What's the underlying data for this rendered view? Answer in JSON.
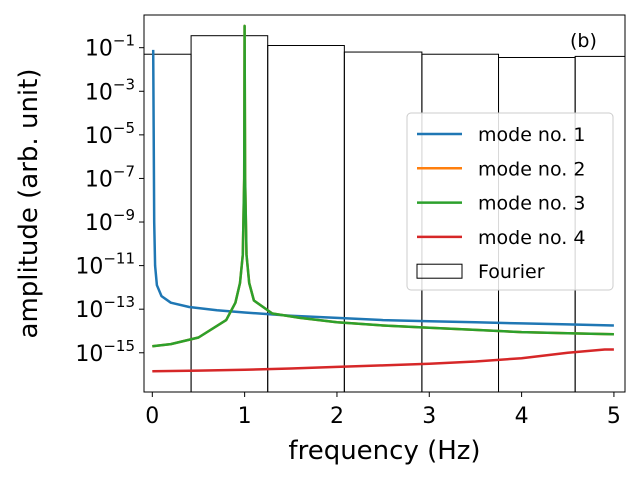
{
  "chart_data": {
    "type": "line",
    "panel_label": "(b)",
    "xlabel": "frequency (Hz)",
    "ylabel": "amplitude (arb. unit)",
    "xlim": [
      -0.09,
      5.12
    ],
    "ylim_log10": [
      -16.8,
      0.5
    ],
    "yscale": "log",
    "x_ticks": [
      0,
      1,
      2,
      3,
      4,
      5
    ],
    "y_ticks_exp": [
      -1,
      -3,
      -5,
      -7,
      -9,
      -11,
      -13,
      -15
    ],
    "legend_position": "center-right",
    "series": [
      {
        "name": "mode no. 1",
        "color": "#1f77b4",
        "points": [
          [
            0.01,
            -1.1
          ],
          [
            0.015,
            -5
          ],
          [
            0.02,
            -9
          ],
          [
            0.03,
            -11
          ],
          [
            0.05,
            -11.9
          ],
          [
            0.1,
            -12.4
          ],
          [
            0.2,
            -12.7
          ],
          [
            0.4,
            -12.9
          ],
          [
            0.7,
            -13.05
          ],
          [
            1,
            -13.15
          ],
          [
            1.5,
            -13.3
          ],
          [
            2,
            -13.4
          ],
          [
            2.5,
            -13.5
          ],
          [
            3,
            -13.55
          ],
          [
            3.5,
            -13.6
          ],
          [
            4,
            -13.65
          ],
          [
            4.5,
            -13.7
          ],
          [
            5,
            -13.75
          ]
        ]
      },
      {
        "name": "mode no. 2",
        "color": "#ff7f0e",
        "points": [
          [
            0,
            -14.7
          ],
          [
            0.2,
            -14.6
          ],
          [
            0.5,
            -14.3
          ],
          [
            0.8,
            -13.5
          ],
          [
            0.9,
            -12.7
          ],
          [
            0.95,
            -11.8
          ],
          [
            0.98,
            -10.5
          ],
          [
            0.995,
            -7
          ],
          [
            1,
            0.0
          ],
          [
            1.005,
            -7
          ],
          [
            1.02,
            -10.5
          ],
          [
            1.05,
            -11.8
          ],
          [
            1.1,
            -12.6
          ],
          [
            1.3,
            -13.2
          ],
          [
            1.6,
            -13.4
          ],
          [
            2,
            -13.6
          ],
          [
            2.5,
            -13.75
          ],
          [
            3,
            -13.85
          ],
          [
            3.5,
            -13.95
          ],
          [
            4,
            -14.05
          ],
          [
            4.5,
            -14.1
          ],
          [
            5,
            -14.15
          ]
        ]
      },
      {
        "name": "mode no. 3",
        "color": "#2ca02c",
        "points": [
          [
            0,
            -14.7
          ],
          [
            0.2,
            -14.6
          ],
          [
            0.5,
            -14.3
          ],
          [
            0.8,
            -13.5
          ],
          [
            0.9,
            -12.7
          ],
          [
            0.95,
            -11.8
          ],
          [
            0.98,
            -10.5
          ],
          [
            0.995,
            -7
          ],
          [
            1,
            0.0
          ],
          [
            1.005,
            -7
          ],
          [
            1.02,
            -10.5
          ],
          [
            1.05,
            -11.8
          ],
          [
            1.1,
            -12.6
          ],
          [
            1.3,
            -13.2
          ],
          [
            1.6,
            -13.4
          ],
          [
            2,
            -13.6
          ],
          [
            2.5,
            -13.75
          ],
          [
            3,
            -13.85
          ],
          [
            3.5,
            -13.95
          ],
          [
            4,
            -14.05
          ],
          [
            4.5,
            -14.1
          ],
          [
            5,
            -14.15
          ]
        ]
      },
      {
        "name": "mode no. 4",
        "color": "#d62728",
        "points": [
          [
            0,
            -15.85
          ],
          [
            0.5,
            -15.82
          ],
          [
            1,
            -15.78
          ],
          [
            1.5,
            -15.72
          ],
          [
            2,
            -15.65
          ],
          [
            2.5,
            -15.58
          ],
          [
            3,
            -15.5
          ],
          [
            3.5,
            -15.4
          ],
          [
            4,
            -15.25
          ],
          [
            4.5,
            -15.0
          ],
          [
            4.9,
            -14.85
          ],
          [
            5,
            -14.85
          ]
        ]
      }
    ],
    "fourier": {
      "name": "Fourier",
      "bars": [
        {
          "x0": -0.09,
          "x1": 0.42,
          "value_log10": -1.3
        },
        {
          "x0": 0.42,
          "x1": 1.25,
          "value_log10": -0.45
        },
        {
          "x0": 1.25,
          "x1": 2.08,
          "value_log10": -0.9
        },
        {
          "x0": 2.08,
          "x1": 2.92,
          "value_log10": -1.2
        },
        {
          "x0": 2.92,
          "x1": 3.75,
          "value_log10": -1.3
        },
        {
          "x0": 3.75,
          "x1": 4.58,
          "value_log10": -1.45
        },
        {
          "x0": 4.58,
          "x1": 5.12,
          "value_log10": -1.4
        }
      ]
    }
  }
}
